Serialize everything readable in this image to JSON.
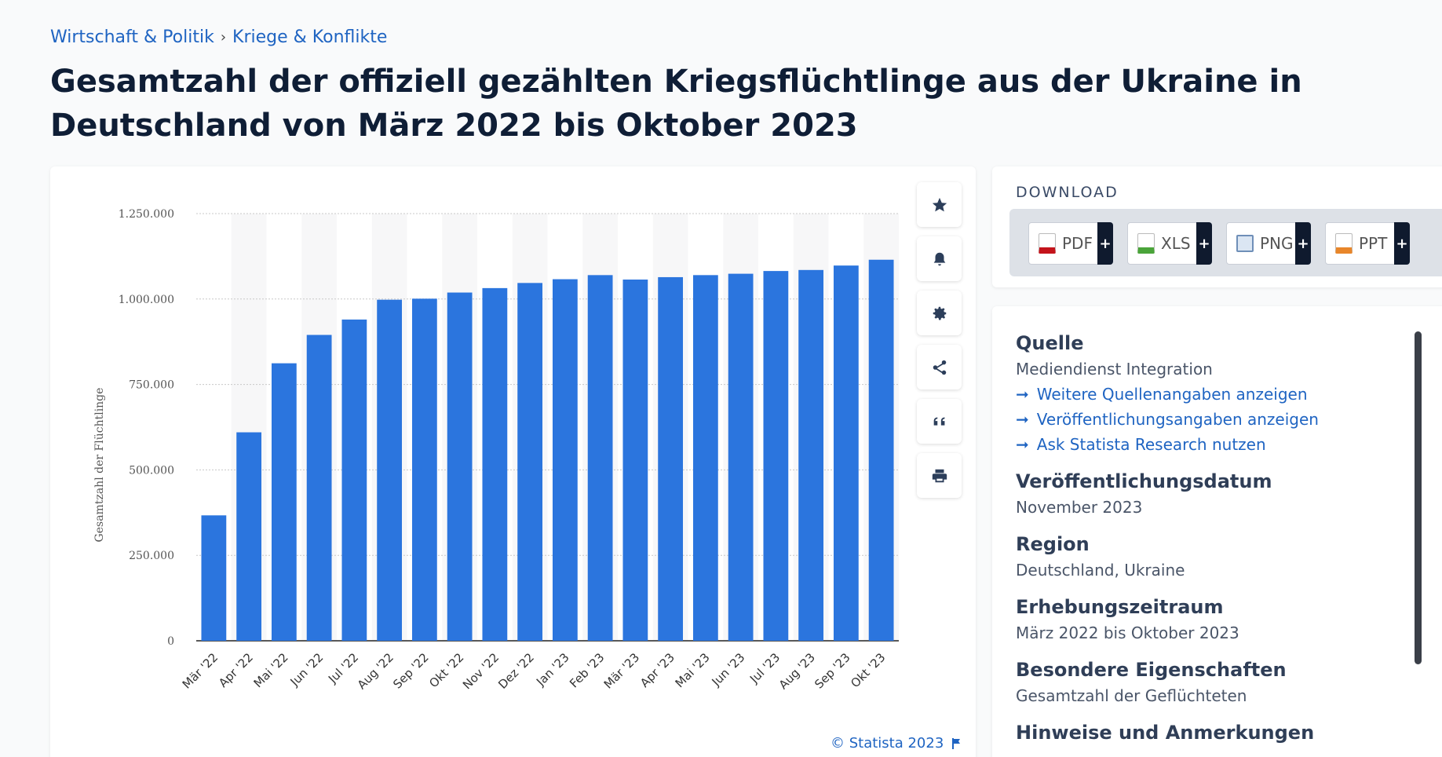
{
  "breadcrumb": {
    "item1": "Wirtschaft & Politik",
    "separator": "›",
    "item2": "Kriege & Konflikte"
  },
  "title": "Gesamtzahl der offiziell gezählten Kriegsflüchtlinge aus der Ukraine in Deutschland von März 2022 bis Oktober 2023",
  "chart_data": {
    "type": "bar",
    "ylabel": "Gesamtzahl der Flüchtlinge",
    "xlabel": "",
    "ylim": [
      0,
      1250000
    ],
    "yticks": [
      0,
      250000,
      500000,
      750000,
      1000000,
      1250000
    ],
    "ytick_labels": [
      "0",
      "250.000",
      "500.000",
      "750.000",
      "1.000.000",
      "1.250.000"
    ],
    "categories": [
      "Mär '22",
      "Apr '22",
      "Mai '22",
      "Jun '22",
      "Jul '22",
      "Aug '22",
      "Sep '22",
      "Okt '22",
      "Nov '22",
      "Dez '22",
      "Jan '23",
      "Feb '23",
      "Mär '23",
      "Apr '23",
      "Mai '23",
      "Jun '23",
      "Jul '23",
      "Aug '23",
      "Sep '23",
      "Okt '23"
    ],
    "values": [
      367000,
      610000,
      812000,
      895000,
      940000,
      998000,
      1001000,
      1019000,
      1032000,
      1047000,
      1058000,
      1070000,
      1057000,
      1064000,
      1070000,
      1074000,
      1082000,
      1085000,
      1098000,
      1115000
    ],
    "grid": true,
    "bar_color": "#2b75de"
  },
  "tools": {
    "star": "star-icon",
    "bell": "bell-icon",
    "settings": "gear-icon",
    "share": "share-icon",
    "cite": "quote-icon",
    "print": "print-icon"
  },
  "copyright": "© Statista 2023",
  "download": {
    "heading": "DOWNLOAD",
    "buttons": [
      {
        "label": "PDF",
        "color": "#c4141b"
      },
      {
        "label": "XLS",
        "color": "#4aa43a"
      },
      {
        "label": "PNG",
        "color": "#6f8fb8"
      },
      {
        "label": "PPT",
        "color": "#e8862a"
      }
    ],
    "plus": "+"
  },
  "info": {
    "source_h": "Quelle",
    "source_v": "Mediendienst Integration",
    "links": [
      "Weitere Quellenangaben anzeigen",
      "Veröffentlichungsangaben anzeigen",
      "Ask Statista Research nutzen"
    ],
    "arrow": "➞",
    "pubdate_h": "Veröffentlichungsdatum",
    "pubdate_v": "November 2023",
    "region_h": "Region",
    "region_v": "Deutschland, Ukraine",
    "period_h": "Erhebungszeitraum",
    "period_v": "März 2022 bis Oktober 2023",
    "special_h": "Besondere Eigenschaften",
    "special_v": "Gesamtzahl der Geflüchteten",
    "notes_h": "Hinweise und Anmerkungen"
  }
}
